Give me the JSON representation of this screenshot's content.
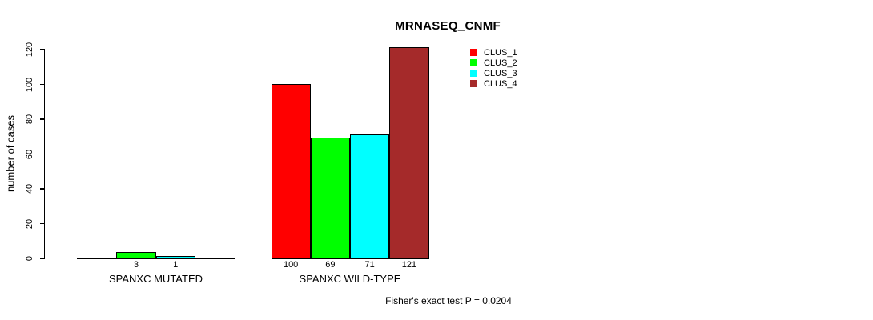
{
  "chart_data": {
    "type": "bar",
    "title": "MRNASEQ_CNMF",
    "ylabel": "number of cases",
    "xlabel": "",
    "groups": [
      "SPANXC MUTATED",
      "SPANXC WILD-TYPE"
    ],
    "series": [
      {
        "name": "CLUS_1",
        "color": "#ff0000",
        "values": [
          0,
          100
        ]
      },
      {
        "name": "CLUS_2",
        "color": "#00ff00",
        "values": [
          3,
          69
        ]
      },
      {
        "name": "CLUS_3",
        "color": "#00ffff",
        "values": [
          1,
          71
        ]
      },
      {
        "name": "CLUS_4",
        "color": "#a52a2a",
        "values": [
          0,
          121
        ]
      }
    ],
    "bar_value_labels": {
      "SPANXC MUTATED": [
        "",
        "3",
        "1",
        ""
      ],
      "SPANXC WILD-TYPE": [
        "100",
        "69",
        "71",
        "121"
      ]
    },
    "yticks": [
      0,
      20,
      40,
      60,
      80,
      100,
      120
    ],
    "ylim": [
      0,
      120
    ],
    "grid": false,
    "legend_position": "top-right",
    "annotation": "Fisher's exact test P = 0.0204"
  }
}
